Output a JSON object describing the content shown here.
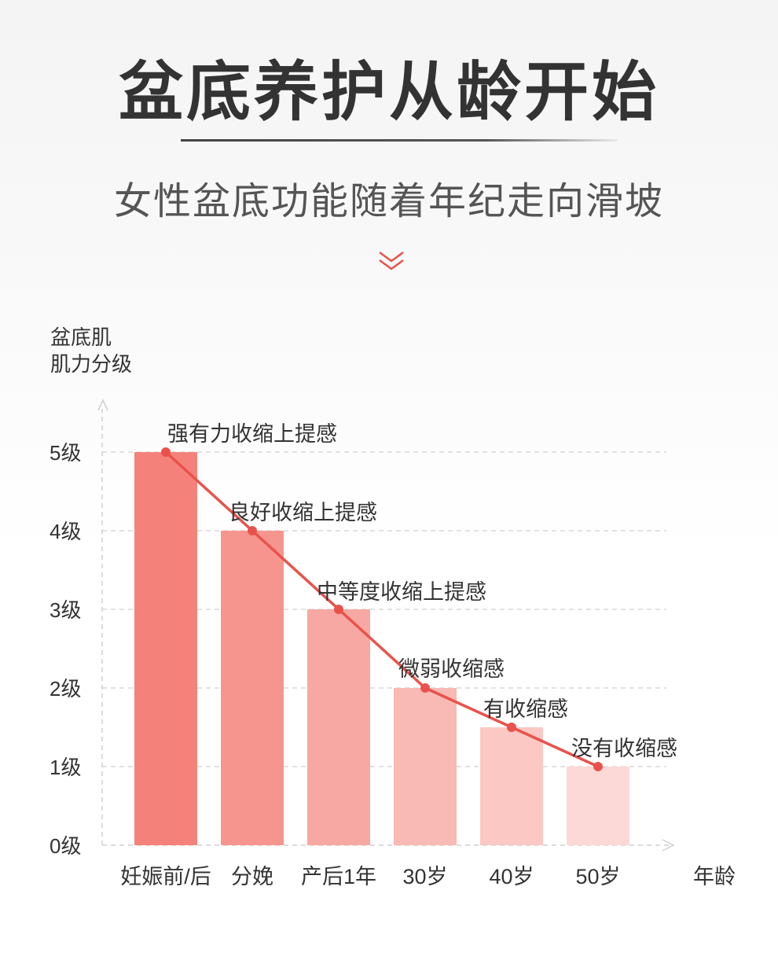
{
  "title": "盆底养护从龄开始",
  "subtitle": "女性盆底功能随着年纪走向滑坡",
  "colors": {
    "line": "#e9524b",
    "bars": [
      "#f4827b",
      "#f6958e",
      "#f8a8a2",
      "#f9b9b4",
      "#fbc8c4",
      "#fcd9d6"
    ]
  },
  "chart_data": {
    "type": "bar",
    "ylabel": [
      "盆底肌",
      "肌力分级"
    ],
    "xlabel": "年龄",
    "categories": [
      "妊娠前/后",
      "分娩",
      "产后1年",
      "30岁",
      "40岁",
      "50岁"
    ],
    "values": [
      5,
      4,
      3,
      2,
      1.5,
      1
    ],
    "annotations": [
      "强有力收缩上提感",
      "良好收缩上提感",
      "中等度收缩上提感",
      "微弱收缩感",
      "有收缩感",
      "没有收缩感"
    ],
    "yticks": [
      0,
      1,
      2,
      3,
      4,
      5
    ],
    "ytick_labels": [
      "0级",
      "1级",
      "2级",
      "3级",
      "4级",
      "5级"
    ],
    "ylim": [
      0,
      5
    ],
    "grid": true,
    "overlay": "line"
  }
}
